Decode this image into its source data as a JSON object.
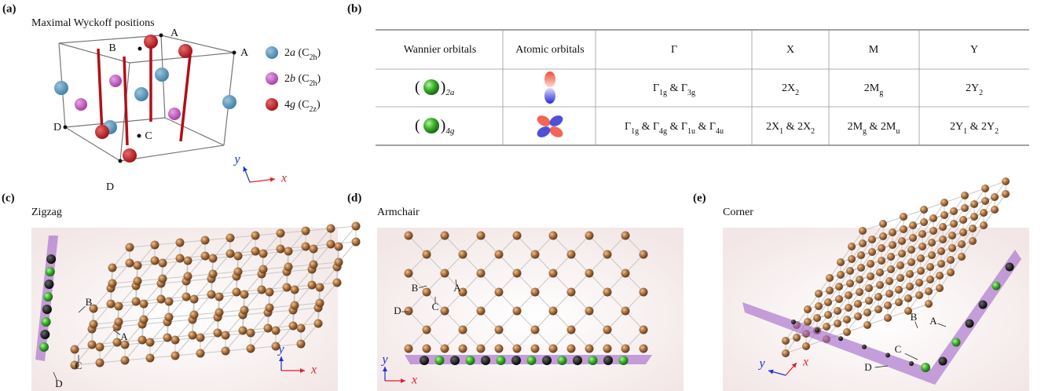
{
  "panel_a": {
    "tag": "(a)",
    "title": "Maximal Wyckoff positions",
    "points": [
      "A",
      "A",
      "B",
      "C",
      "D",
      "D"
    ],
    "legend": [
      [
        {
          "t": "2"
        },
        {
          "i": "a"
        },
        {
          "t": " (C"
        },
        {
          "sub": "2h"
        },
        {
          "t": ")"
        }
      ],
      [
        {
          "t": "2"
        },
        {
          "i": "b"
        },
        {
          "t": " (C"
        },
        {
          "sub": "2h"
        },
        {
          "t": ")"
        }
      ],
      [
        {
          "t": "4"
        },
        {
          "i": "g"
        },
        {
          "t": " (C"
        },
        {
          "sub": "2z"
        },
        {
          "t": ")"
        }
      ]
    ],
    "axis_x": "x",
    "axis_y": "y"
  },
  "panel_b": {
    "tag": "(b)",
    "header": [
      "Wannier orbitals",
      "Atomic orbitals",
      "Γ",
      "X",
      "M",
      "Y"
    ],
    "rows": [
      {
        "wannier": [
          {
            "t": "("
          },
          {
            "t": ")"
          },
          {
            "sub": "2a"
          }
        ],
        "cells": [
          [
            {
              "t": "Γ"
            },
            {
              "sub": "1g"
            },
            {
              "t": " & Γ"
            },
            {
              "sub": "3g"
            }
          ],
          [
            {
              "t": "2X"
            },
            {
              "sub": "2"
            }
          ],
          [
            {
              "t": "2M"
            },
            {
              "sub": "g"
            }
          ],
          [
            {
              "t": "2Y"
            },
            {
              "sub": "2"
            }
          ]
        ]
      },
      {
        "wannier": [
          {
            "t": "("
          },
          {
            "t": ")"
          },
          {
            "sub": "4g"
          }
        ],
        "cells": [
          [
            {
              "t": "Γ"
            },
            {
              "sub": "1g"
            },
            {
              "t": " & Γ"
            },
            {
              "sub": "4g"
            },
            {
              "t": " & Γ"
            },
            {
              "sub": "1u"
            },
            {
              "t": " & Γ"
            },
            {
              "sub": "4u"
            }
          ],
          [
            {
              "t": "2X"
            },
            {
              "sub": "1"
            },
            {
              "t": " & 2X"
            },
            {
              "sub": "2"
            }
          ],
          [
            {
              "t": "2M"
            },
            {
              "sub": "g"
            },
            {
              "t": " & 2M"
            },
            {
              "sub": "u"
            }
          ],
          [
            {
              "t": "2Y"
            },
            {
              "sub": "1"
            },
            {
              "t": " & 2Y"
            },
            {
              "sub": "2"
            }
          ]
        ]
      }
    ]
  },
  "panel_c": {
    "tag": "(c)",
    "title": "Zigzag",
    "points": [
      "A",
      "B",
      "C",
      "D"
    ],
    "axis_x": "x",
    "axis_y": "y"
  },
  "panel_d": {
    "tag": "(d)",
    "title": "Armchair",
    "points": [
      "A",
      "B",
      "C",
      "D"
    ],
    "axis_x": "x",
    "axis_y": "y"
  },
  "panel_e": {
    "tag": "(e)",
    "title": "Corner",
    "points": [
      "A",
      "B",
      "C",
      "D"
    ],
    "axis_x": "x",
    "axis_y": "y"
  }
}
